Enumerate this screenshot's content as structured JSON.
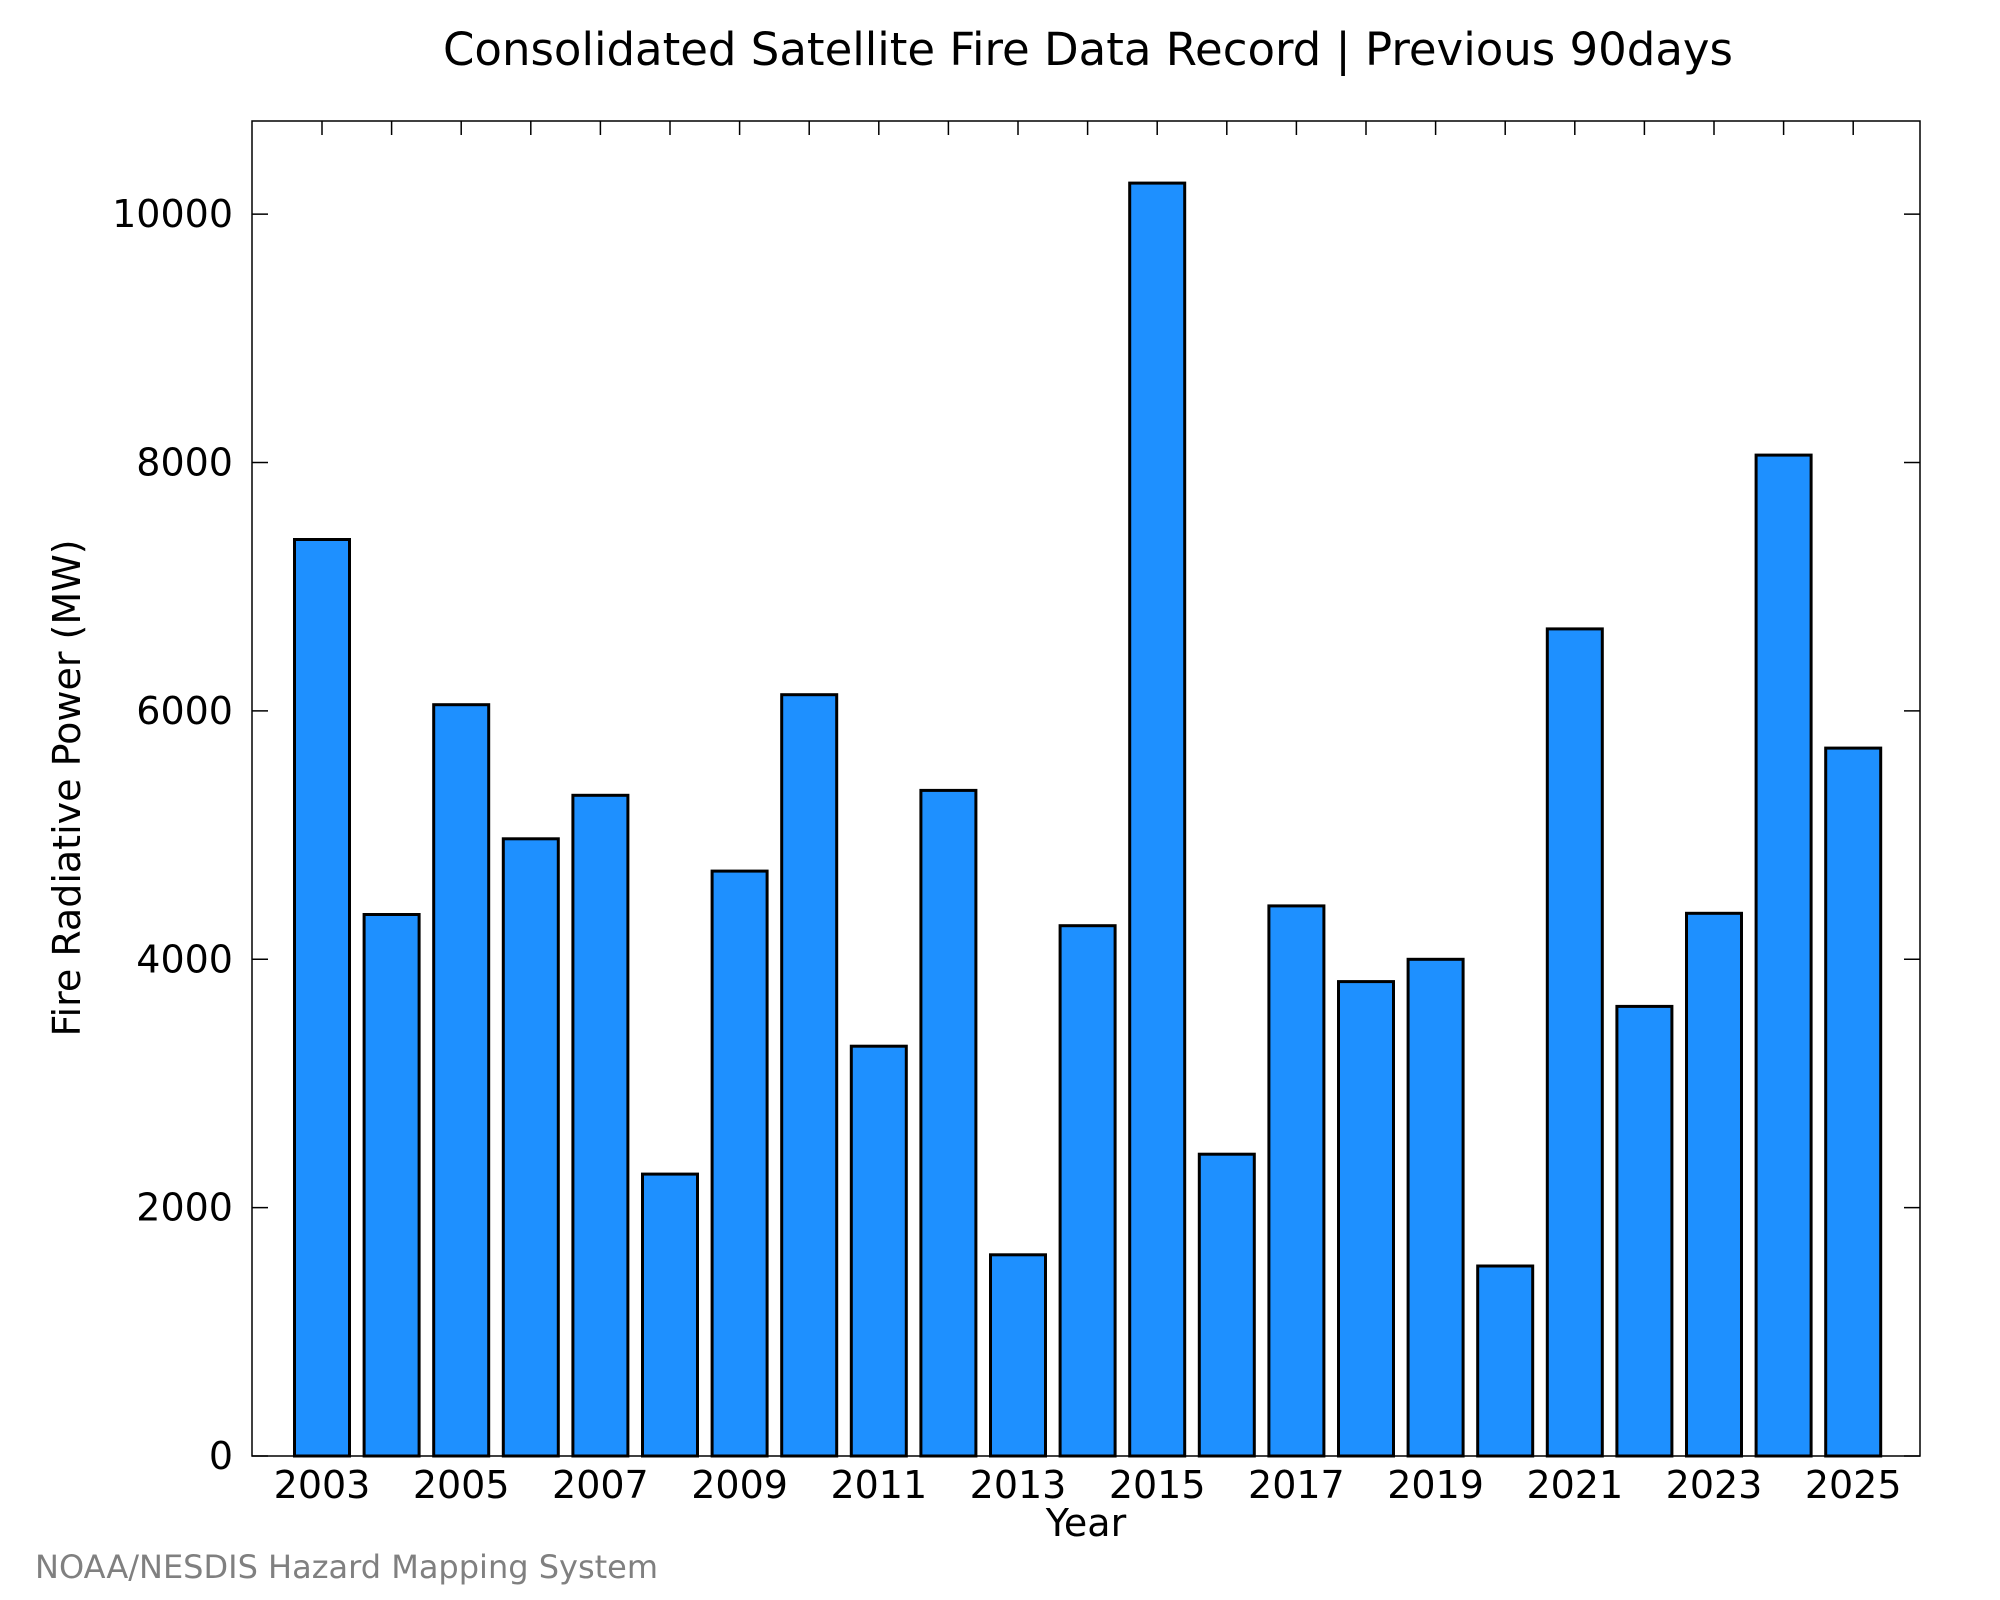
{
  "chart_data": {
    "type": "bar",
    "title": "Consolidated Satellite Fire Data Record | Previous 90days",
    "xlabel": "Year",
    "ylabel": "Fire Radiative Power (MW)",
    "categories": [
      "2003",
      "2004",
      "2005",
      "2006",
      "2007",
      "2008",
      "2009",
      "2010",
      "2011",
      "2012",
      "2013",
      "2014",
      "2015",
      "2016",
      "2017",
      "2018",
      "2019",
      "2020",
      "2021",
      "2022",
      "2023",
      "2024",
      "2025"
    ],
    "values": [
      7380,
      4360,
      6050,
      4970,
      5320,
      2270,
      4710,
      6130,
      3300,
      5360,
      1620,
      4270,
      10250,
      2430,
      4430,
      3820,
      4000,
      1530,
      6660,
      3620,
      4370,
      8060,
      5700
    ],
    "xticks": [
      "2003",
      "2005",
      "2007",
      "2009",
      "2011",
      "2013",
      "2015",
      "2017",
      "2019",
      "2021",
      "2023",
      "2025"
    ],
    "yticks": [
      "0",
      "2000",
      "4000",
      "6000",
      "8000",
      "10000"
    ],
    "ylim": [
      0,
      10750
    ],
    "grid": false,
    "bar_color": "#1e90ff",
    "bar_edge_color": "#000000"
  },
  "footer": {
    "source": "NOAA/NESDIS Hazard Mapping System"
  }
}
